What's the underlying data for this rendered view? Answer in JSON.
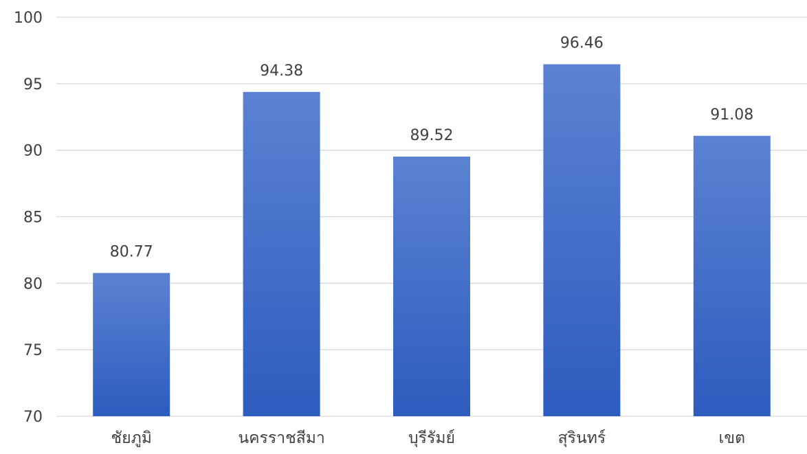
{
  "chart_data": {
    "type": "bar",
    "title": "",
    "xlabel": "",
    "ylabel": "",
    "categories": [
      "ชัยภูมิ",
      "นครราชสีมา",
      "บุรีรัมย์",
      "สุรินทร์",
      "เขต"
    ],
    "values": [
      80.77,
      94.38,
      89.52,
      96.46,
      91.08
    ],
    "data_labels": [
      "80.77",
      "94.38",
      "89.52",
      "96.46",
      "91.08"
    ],
    "ylim": [
      70,
      100
    ],
    "yticks": [
      70,
      75,
      80,
      85,
      90,
      95,
      100
    ],
    "grid": true,
    "legend": "none",
    "colors": {
      "bar_top": "#5b82d2",
      "bar_bottom": "#2d5cbf",
      "gridline": "#d9d9d9",
      "text": "#404040"
    }
  }
}
